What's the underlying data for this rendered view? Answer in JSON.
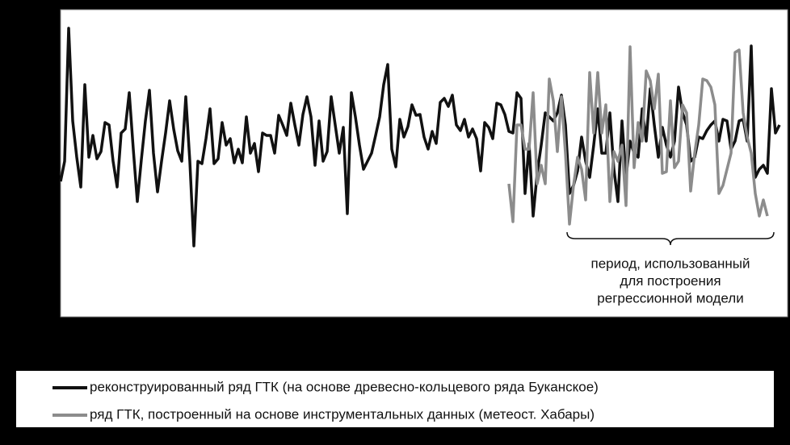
{
  "chart_data": {
    "type": "line",
    "annotation": [
      "период, использованный",
      "для построения",
      "регрессионной модели"
    ],
    "ylim": [
      0,
      381
    ],
    "series": [
      {
        "name": "реконструированный ряд ГТК (на основе древесно-кольцевого ряда Буканское)",
        "color": "#111111",
        "values": [
          168,
          193,
          358,
          243,
          198,
          161,
          288,
          198,
          225,
          196,
          205,
          241,
          238,
          193,
          161,
          228,
          233,
          278,
          208,
          143,
          195,
          243,
          281,
          203,
          155,
          193,
          228,
          268,
          233,
          206,
          193,
          273,
          193,
          88,
          193,
          190,
          221,
          258,
          190,
          196,
          241,
          213,
          221,
          191,
          208,
          191,
          248,
          203,
          215,
          180,
          228,
          225,
          225,
          203,
          250,
          238,
          225,
          265,
          238,
          213,
          251,
          273,
          248,
          188,
          243,
          193,
          205,
          273,
          238,
          203,
          235,
          128,
          278,
          248,
          213,
          183,
          193,
          203,
          225,
          248,
          288,
          313,
          208,
          186,
          245,
          223,
          236,
          263,
          250,
          251,
          223,
          208,
          230,
          215,
          266,
          271,
          261,
          275,
          238,
          231,
          245,
          223,
          233,
          221,
          181,
          241,
          235,
          221,
          265,
          263,
          251,
          230,
          228,
          278,
          271,
          153,
          215,
          125,
          178,
          213,
          253,
          248,
          243,
          253,
          275,
          238,
          153,
          163,
          181,
          223,
          193,
          173,
          213,
          258,
          203,
          203,
          253,
          183,
          143,
          243,
          173,
          218,
          203,
          198,
          258,
          218,
          283,
          238,
          198,
          235,
          213,
          198,
          218,
          285,
          253,
          238,
          193,
          198,
          223,
          221,
          231,
          238,
          243,
          218,
          245,
          243,
          208,
          218,
          243,
          245,
          218,
          336,
          173,
          183,
          188,
          178,
          283,
          228,
          238
        ]
      },
      {
        "name": "ряд ГТК, построенный на основе инструментальных данных  (метеост. Хабары)",
        "color": "#8c8c8c",
        "values": [
          null,
          null,
          null,
          null,
          null,
          null,
          null,
          null,
          null,
          null,
          null,
          null,
          null,
          null,
          null,
          null,
          null,
          null,
          null,
          null,
          null,
          null,
          null,
          null,
          null,
          null,
          null,
          null,
          null,
          null,
          null,
          null,
          null,
          null,
          null,
          null,
          null,
          null,
          null,
          null,
          null,
          null,
          null,
          null,
          null,
          null,
          null,
          null,
          null,
          null,
          null,
          null,
          null,
          null,
          null,
          null,
          null,
          null,
          null,
          null,
          null,
          null,
          null,
          null,
          null,
          null,
          null,
          null,
          null,
          null,
          null,
          null,
          null,
          null,
          null,
          null,
          null,
          null,
          null,
          null,
          null,
          null,
          null,
          null,
          null,
          null,
          null,
          null,
          null,
          null,
          null,
          null,
          null,
          null,
          null,
          null,
          null,
          null,
          null,
          null,
          null,
          null,
          null,
          null,
          null,
          null,
          null,
          null,
          null,
          null,
          null,
          165,
          118,
          238,
          238,
          208,
          208,
          278,
          165,
          188,
          165,
          295,
          268,
          205,
          273,
          203,
          115,
          163,
          198,
          183,
          145,
          303,
          228,
          303,
          228,
          263,
          143,
          205,
          193,
          213,
          138,
          335,
          185,
          241,
          218,
          305,
          293,
          258,
          301,
          178,
          180,
          268,
          185,
          193,
          263,
          253,
          156,
          203,
          238,
          295,
          293,
          285,
          263,
          153,
          163,
          183,
          203,
          328,
          331,
          253,
          223,
          203,
          153,
          125,
          145,
          125,
          null,
          null,
          null
        ]
      }
    ]
  }
}
